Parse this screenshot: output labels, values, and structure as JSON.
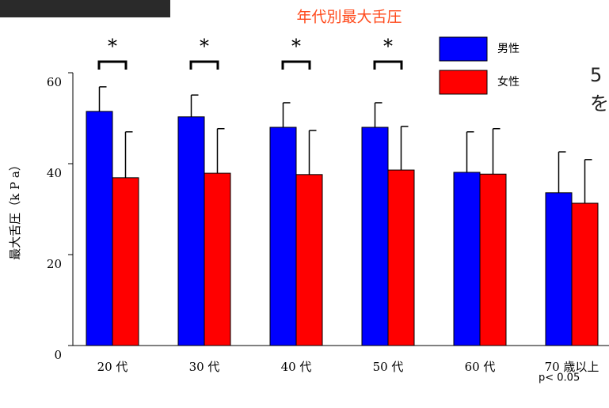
{
  "chart_data": {
    "type": "bar",
    "title": "年代別最大舌圧",
    "y_label": "最大舌圧（k P a）",
    "categories": [
      "20 代",
      "30 代",
      "40 代",
      "50 代",
      "60 代",
      "70 歳以上"
    ],
    "series": [
      {
        "name": "男性",
        "color": "#0000ff",
        "values": [
          51.5,
          50.3,
          48.0,
          48.0,
          38.1,
          33.6
        ],
        "errors": [
          5.4,
          4.8,
          5.4,
          5.4,
          8.9,
          9.0
        ]
      },
      {
        "name": "女性",
        "color": "#ff0000",
        "values": [
          36.9,
          37.9,
          37.6,
          38.6,
          37.7,
          31.3
        ],
        "errors": [
          10.1,
          9.8,
          9.7,
          9.6,
          10.0,
          9.6
        ]
      }
    ],
    "significance": [
      "*",
      "*",
      "*",
      "*",
      null,
      null
    ],
    "footnote": "p< 0.05",
    "side_text": [
      "5",
      "を"
    ],
    "ylim": [
      0,
      60
    ],
    "yticks": [
      0,
      20,
      40,
      60
    ]
  }
}
